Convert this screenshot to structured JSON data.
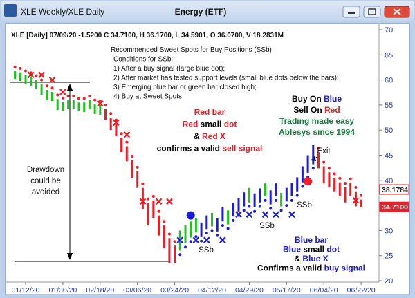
{
  "chart_data": {
    "type": "ohlc-bars",
    "window_title": "XLE Weekly/XLE Daily",
    "title": "Energy (ETF)",
    "header": "XLE [Daily] 07/09/20 -1.5200 C 34.7100, H 36.1700, L 34.5901, O 36.0700, V 18.2831M",
    "notes": [
      "Recommended Sweet Spots for Buy Positions (SSb)",
      "Conditions for SSb:",
      "1) After a buy signal (large blue dot);",
      "2) After market has tested support levels (small blue dots below the bars);",
      "3) Emerging blue bar or green bar closed high;",
      "4) Buy at Sweet Spots"
    ],
    "categories": [
      null,
      null,
      "01/12/20",
      null,
      null,
      null,
      null,
      null,
      null,
      "01/30/20",
      null,
      null,
      null,
      null,
      null,
      null,
      "02/18/20",
      null,
      null,
      null,
      null,
      null,
      null,
      "03/06/20",
      null,
      null,
      null,
      null,
      null,
      null,
      "03/24/20",
      null,
      null,
      null,
      null,
      null,
      null,
      "04/12/20",
      null,
      null,
      null,
      null,
      null,
      null,
      "04/29/20",
      null,
      null,
      null,
      null,
      null,
      null,
      "05/17/20",
      null,
      null,
      null,
      null,
      null,
      null,
      "06/04/20",
      null,
      null,
      null,
      null,
      null,
      null,
      "06/22/20"
    ],
    "high": [
      61.8,
      61.5,
      61,
      60.6,
      60,
      59.2,
      58,
      57.6,
      56.2,
      55.6,
      56,
      56,
      55.5,
      55.5,
      56,
      55.2,
      55,
      54.2,
      52.5,
      51.2,
      48.5,
      46.8,
      44,
      41.8,
      38.5,
      35.5,
      36,
      33,
      31,
      28.5,
      27,
      30,
      31,
      31.8,
      32.5,
      31.6,
      33,
      33.5,
      32.5,
      34.6,
      34,
      35.5,
      36.5,
      37.6,
      38.5,
      37.4,
      38.4,
      39.4,
      38,
      39.4,
      37.5,
      38.5,
      39.5,
      40.6,
      42.8,
      45,
      47,
      45.6,
      42.8,
      41.6,
      40.5,
      39.6,
      38.6,
      39.5,
      37.8,
      36.17
    ],
    "low": [
      60.2,
      59.8,
      59.2,
      58.8,
      58.2,
      57,
      56,
      55.8,
      54,
      53.8,
      54.2,
      54.3,
      53.8,
      53.6,
      54.2,
      53.2,
      53,
      52,
      50,
      48.8,
      45.6,
      43.8,
      40.5,
      38.5,
      34.2,
      31,
      32.5,
      29,
      26.5,
      23.5,
      23.5,
      26,
      27.5,
      28.6,
      29.6,
      28.7,
      30.3,
      30.8,
      29.8,
      31.8,
      31.2,
      32.8,
      33.8,
      34.8,
      35.6,
      34.6,
      35.6,
      36.8,
      35.2,
      36.8,
      34.8,
      35.8,
      36.8,
      37.8,
      39.6,
      41.5,
      43.2,
      42.4,
      39.4,
      38.6,
      37.8,
      36.8,
      35.6,
      36.8,
      34.8,
      34.59
    ],
    "bar_colors": [
      "green",
      "green",
      "green",
      "green",
      "green",
      "green",
      "green",
      "green",
      "green",
      "green",
      "green",
      "green",
      "green",
      "green",
      "green",
      "green",
      "green",
      "red",
      "red",
      "red",
      "red",
      "red",
      "red",
      "red",
      "red",
      "red",
      "red",
      "red",
      "red",
      "red",
      "red",
      "green",
      "green",
      "green",
      "green",
      "blue",
      "blue",
      "green",
      "blue",
      "blue",
      "green",
      "blue",
      "blue",
      "blue",
      "green",
      "blue",
      "blue",
      "green",
      "blue",
      "blue",
      "green",
      "blue",
      "blue",
      "blue",
      "blue",
      "blue",
      "blue",
      "red",
      "red",
      "red",
      "red",
      "red",
      "red",
      "red",
      "red",
      "red"
    ],
    "palette": {
      "red": "#ee1c24",
      "green": "#1fc21f",
      "blue": "#1c1cd0"
    },
    "red_dots": {
      "x": [
        0,
        1,
        2,
        3,
        4,
        5,
        6,
        7,
        8,
        9,
        10,
        11,
        12,
        13,
        14,
        15,
        16,
        17,
        18,
        19,
        20,
        21,
        22,
        23,
        24,
        25,
        26,
        27,
        28,
        29,
        30,
        57,
        58,
        59,
        60,
        61,
        62,
        63,
        64,
        65
      ],
      "values": [
        62.6,
        62.3,
        61.8,
        61.4,
        60.8,
        60,
        58.8,
        58.4,
        57,
        56.4,
        56.8,
        56.8,
        56.3,
        56.3,
        56.8,
        56,
        55.8,
        55,
        53.3,
        52,
        49.3,
        47.6,
        44.8,
        42.6,
        39.3,
        36.3,
        36.8,
        33.8,
        31.8,
        29.3,
        27.8,
        46.4,
        43.6,
        42.4,
        41.3,
        40.4,
        39.4,
        40.3,
        38.6,
        37
      ]
    },
    "blue_dots": {
      "x": [
        31,
        32,
        33,
        34,
        35,
        36,
        37,
        38,
        39,
        40,
        41,
        42,
        43,
        44,
        45,
        46,
        47,
        48,
        49,
        50,
        51,
        52,
        53,
        54,
        55,
        56
      ],
      "values": [
        25.2,
        26.7,
        27.8,
        28.8,
        27.9,
        29.5,
        30,
        29,
        31,
        30.4,
        32,
        33,
        34,
        34.8,
        33.8,
        34.8,
        36,
        34.4,
        36,
        34,
        35,
        36,
        37,
        38.8,
        40.7,
        42.4
      ]
    },
    "sell_x": {
      "x": [
        3,
        5,
        7,
        9,
        16,
        19,
        21,
        24,
        27,
        29,
        64
      ],
      "values": [
        61,
        61,
        60,
        57.6,
        55.3,
        51.5,
        49.1,
        35.8,
        35.8,
        35.8,
        36
      ]
    },
    "buy_x": {
      "x": [
        31,
        34,
        36,
        39,
        42,
        44,
        47,
        49,
        52
      ],
      "values": [
        28.1,
        28.1,
        28.1,
        28.1,
        33.2,
        33.2,
        33.2,
        33.2,
        33.2
      ]
    },
    "buy_signal": {
      "x": 33,
      "value": 33
    },
    "sell_signal": {
      "x": 55,
      "value": 39.8
    },
    "ylim": [
      20,
      70
    ],
    "yticks": [
      20,
      25,
      30,
      35,
      40,
      45,
      50,
      55,
      60,
      65,
      70
    ],
    "price_labels": [
      {
        "value": 38.1784,
        "label": "38.1784"
      },
      {
        "value": 34.71,
        "label": "34.7100"
      }
    ],
    "callouts": [
      {
        "lines": [
          [
            {
              "text": "Red bar",
              "color": "#e8202a"
            }
          ],
          [
            {
              "text": "Red",
              "color": "#e8202a"
            },
            {
              "text": " small ",
              "color": "#000000"
            },
            {
              "text": "dot",
              "color": "#e8202a"
            }
          ],
          [
            {
              "text": "& ",
              "color": "#000000"
            },
            {
              "text": "Red X",
              "color": "#e8202a"
            }
          ],
          [
            {
              "text": "confirms a valid ",
              "color": "#000000"
            },
            {
              "text": "sell signal",
              "color": "#e8202a"
            }
          ]
        ]
      },
      {
        "lines": [
          [
            {
              "text": "Buy On ",
              "color": "#000000"
            },
            {
              "text": "Blue",
              "color": "#1c1cd0"
            }
          ],
          [
            {
              "text": "Sell On ",
              "color": "#000000"
            },
            {
              "text": "Red",
              "color": "#e8202a"
            }
          ],
          [
            {
              "text": "Trading made easy",
              "color": "#187a3c"
            }
          ],
          [
            {
              "text": "Ablesys since 1994",
              "color": "#187a3c"
            }
          ]
        ]
      },
      {
        "lines": [
          [
            {
              "text": "Blue bar",
              "color": "#1c1cd0"
            }
          ],
          [
            {
              "text": "Blue",
              "color": "#1c1cd0"
            },
            {
              "text": " small ",
              "color": "#000000"
            },
            {
              "text": "dot",
              "color": "#1c1cd0"
            }
          ],
          [
            {
              "text": "& ",
              "color": "#000000"
            },
            {
              "text": "Blue X",
              "color": "#1c1cd0"
            }
          ],
          [
            {
              "text": "Confirms a valid ",
              "color": "#000000"
            },
            {
              "text": "buy signal",
              "color": "#1c1cd0"
            }
          ]
        ]
      }
    ],
    "drawdown_note": [
      "Drawdown",
      "could be",
      "avoided"
    ],
    "ssb_labels": [
      "SSb",
      "SSb",
      "SSb"
    ],
    "exit_label": "Exit"
  }
}
